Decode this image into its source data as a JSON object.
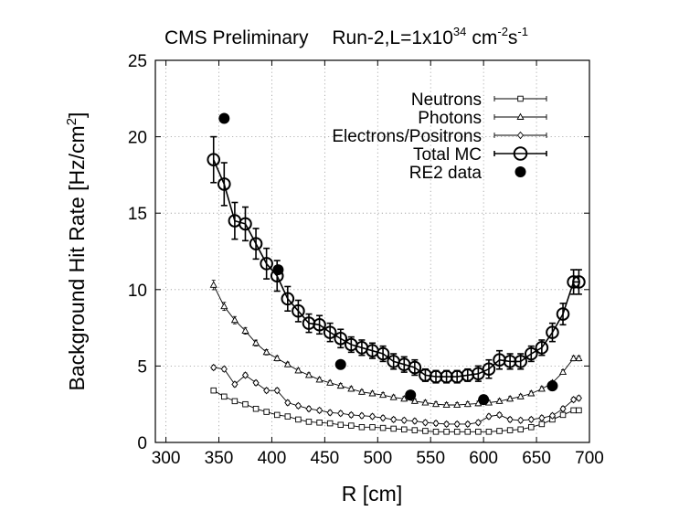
{
  "chart_data": {
    "type": "scatter",
    "title_main": "CMS Preliminary",
    "title_run": "Run-2,L=1x10",
    "title_exp": "34",
    "title_unit": "cm",
    "title_exp2": "-2",
    "title_unit2": "s",
    "title_exp3": "-1",
    "xlabel": "R [cm]",
    "ylabel_main": "Background Hit Rate [Hz/cm",
    "ylabel_sup": "2",
    "ylabel_close": "]",
    "xlim": [
      290,
      700
    ],
    "ylim": [
      0,
      25
    ],
    "xticks": [
      "300",
      "350",
      "400",
      "450",
      "500",
      "550",
      "600",
      "650",
      "700"
    ],
    "yticks": [
      "0",
      "5",
      "10",
      "15",
      "20",
      "25"
    ],
    "grid": true,
    "legend_position": "top-right",
    "series": [
      {
        "name": "Neutrons",
        "marker": "square",
        "points": [
          [
            345,
            3.4
          ],
          [
            355,
            3.0
          ],
          [
            365,
            2.7
          ],
          [
            375,
            2.5
          ],
          [
            385,
            2.2
          ],
          [
            395,
            2.0
          ],
          [
            405,
            1.8
          ],
          [
            415,
            1.7
          ],
          [
            425,
            1.5
          ],
          [
            435,
            1.35
          ],
          [
            445,
            1.3
          ],
          [
            455,
            1.25
          ],
          [
            465,
            1.15
          ],
          [
            475,
            1.1
          ],
          [
            485,
            1.0
          ],
          [
            495,
            1.0
          ],
          [
            505,
            0.95
          ],
          [
            515,
            0.9
          ],
          [
            525,
            0.85
          ],
          [
            535,
            0.8
          ],
          [
            545,
            0.75
          ],
          [
            555,
            0.7
          ],
          [
            565,
            0.7
          ],
          [
            575,
            0.7
          ],
          [
            585,
            0.7
          ],
          [
            595,
            0.7
          ],
          [
            605,
            0.7
          ],
          [
            615,
            0.75
          ],
          [
            625,
            0.8
          ],
          [
            635,
            0.85
          ],
          [
            645,
            1.0
          ],
          [
            655,
            1.2
          ],
          [
            665,
            1.5
          ],
          [
            675,
            1.8
          ],
          [
            685,
            2.1
          ],
          [
            690,
            2.1
          ]
        ]
      },
      {
        "name": "Photons",
        "marker": "triangle",
        "points": [
          [
            345,
            10.3
          ],
          [
            355,
            8.9
          ],
          [
            365,
            8.0
          ],
          [
            375,
            7.3
          ],
          [
            385,
            6.5
          ],
          [
            395,
            5.9
          ],
          [
            405,
            5.5
          ],
          [
            415,
            5.1
          ],
          [
            425,
            4.7
          ],
          [
            435,
            4.4
          ],
          [
            445,
            4.1
          ],
          [
            455,
            3.9
          ],
          [
            465,
            3.7
          ],
          [
            475,
            3.5
          ],
          [
            485,
            3.3
          ],
          [
            495,
            3.2
          ],
          [
            505,
            3.1
          ],
          [
            515,
            2.95
          ],
          [
            525,
            2.85
          ],
          [
            535,
            2.7
          ],
          [
            545,
            2.6
          ],
          [
            555,
            2.5
          ],
          [
            565,
            2.45
          ],
          [
            575,
            2.45
          ],
          [
            585,
            2.5
          ],
          [
            595,
            2.55
          ],
          [
            605,
            2.6
          ],
          [
            615,
            2.7
          ],
          [
            625,
            2.85
          ],
          [
            635,
            3.0
          ],
          [
            645,
            3.2
          ],
          [
            655,
            3.5
          ],
          [
            665,
            3.9
          ],
          [
            675,
            4.6
          ],
          [
            685,
            5.5
          ],
          [
            690,
            5.5
          ]
        ]
      },
      {
        "name": "Electrons/Positrons",
        "marker": "diamond",
        "points": [
          [
            345,
            4.9
          ],
          [
            355,
            4.8
          ],
          [
            365,
            3.8
          ],
          [
            375,
            4.4
          ],
          [
            385,
            3.9
          ],
          [
            395,
            3.4
          ],
          [
            405,
            3.4
          ],
          [
            415,
            2.6
          ],
          [
            425,
            2.4
          ],
          [
            435,
            2.2
          ],
          [
            445,
            2.1
          ],
          [
            455,
            1.95
          ],
          [
            465,
            1.9
          ],
          [
            475,
            1.8
          ],
          [
            485,
            1.75
          ],
          [
            495,
            1.7
          ],
          [
            505,
            1.6
          ],
          [
            515,
            1.5
          ],
          [
            525,
            1.45
          ],
          [
            535,
            1.4
          ],
          [
            545,
            1.3
          ],
          [
            555,
            1.25
          ],
          [
            565,
            1.2
          ],
          [
            575,
            1.2
          ],
          [
            585,
            1.2
          ],
          [
            595,
            1.3
          ],
          [
            605,
            1.7
          ],
          [
            615,
            1.8
          ],
          [
            625,
            1.5
          ],
          [
            635,
            1.45
          ],
          [
            645,
            1.5
          ],
          [
            655,
            1.6
          ],
          [
            665,
            1.75
          ],
          [
            675,
            2.2
          ],
          [
            685,
            2.8
          ],
          [
            690,
            2.9
          ]
        ]
      },
      {
        "name": "Total MC",
        "marker": "circle",
        "points": [
          [
            345,
            18.5
          ],
          [
            355,
            16.9
          ],
          [
            365,
            14.5
          ],
          [
            375,
            14.3
          ],
          [
            385,
            13.0
          ],
          [
            395,
            11.7
          ],
          [
            405,
            10.9
          ],
          [
            415,
            9.4
          ],
          [
            425,
            8.6
          ],
          [
            435,
            7.8
          ],
          [
            445,
            7.7
          ],
          [
            455,
            7.2
          ],
          [
            465,
            6.8
          ],
          [
            475,
            6.4
          ],
          [
            485,
            6.2
          ],
          [
            495,
            6.0
          ],
          [
            505,
            5.8
          ],
          [
            515,
            5.3
          ],
          [
            525,
            5.1
          ],
          [
            535,
            4.9
          ],
          [
            545,
            4.4
          ],
          [
            555,
            4.3
          ],
          [
            565,
            4.3
          ],
          [
            575,
            4.3
          ],
          [
            585,
            4.4
          ],
          [
            595,
            4.5
          ],
          [
            605,
            4.8
          ],
          [
            615,
            5.4
          ],
          [
            625,
            5.3
          ],
          [
            635,
            5.3
          ],
          [
            645,
            5.8
          ],
          [
            655,
            6.2
          ],
          [
            665,
            7.2
          ],
          [
            675,
            8.4
          ],
          [
            685,
            10.5
          ],
          [
            690,
            10.5
          ]
        ],
        "errors": [
          1.5,
          1.4,
          1.2,
          1.1,
          1.0,
          1.0,
          1.0,
          0.8,
          0.7,
          0.6,
          0.6,
          0.6,
          0.6,
          0.5,
          0.5,
          0.5,
          0.5,
          0.5,
          0.5,
          0.5,
          0.4,
          0.4,
          0.4,
          0.4,
          0.4,
          0.5,
          0.6,
          0.6,
          0.5,
          0.5,
          0.5,
          0.5,
          0.6,
          0.7,
          0.8,
          0.8
        ]
      },
      {
        "name": "RE2 data",
        "marker": "filled-circle",
        "points": [
          [
            355,
            21.2
          ],
          [
            406,
            11.3
          ],
          [
            465,
            5.1
          ],
          [
            531,
            3.1
          ],
          [
            600,
            2.8
          ],
          [
            665,
            3.7
          ]
        ]
      }
    ]
  }
}
